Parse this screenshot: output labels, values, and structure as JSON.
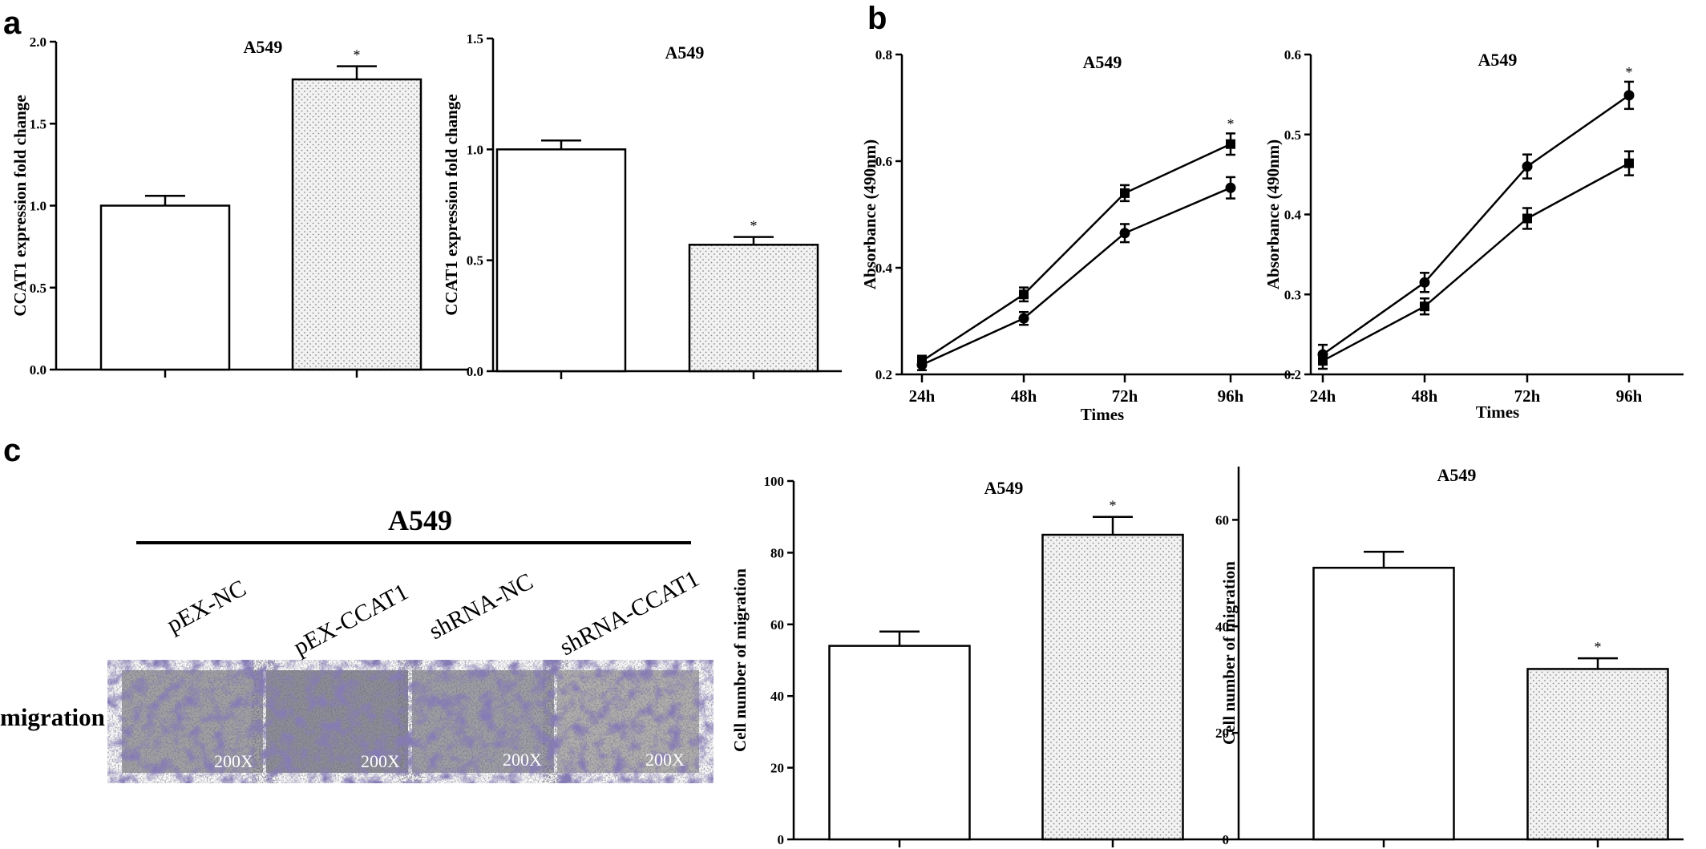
{
  "panels": {
    "a": "a",
    "b": "b",
    "c": "c"
  },
  "chart_data": [
    {
      "id": "a1",
      "type": "bar",
      "title": "A549",
      "ylabel": "CCAT1 expression fold change",
      "xlabel": "",
      "ylim": [
        0,
        2.0
      ],
      "yticks": [
        "0.0",
        "0.5",
        "1.0",
        "1.5",
        "2.0"
      ],
      "categories": [
        "",
        ""
      ],
      "values": [
        1.0,
        1.77
      ],
      "errors": [
        0.06,
        0.08
      ],
      "fills": [
        "white",
        "dotted"
      ],
      "annotations": [
        "",
        "*"
      ]
    },
    {
      "id": "a2",
      "type": "bar",
      "title": "A549",
      "ylabel": "CCAT1 expression fold change",
      "xlabel": "",
      "ylim": [
        0,
        1.5
      ],
      "yticks": [
        "0.0",
        "0.5",
        "1.0",
        "1.5"
      ],
      "categories": [
        "",
        ""
      ],
      "values": [
        1.0,
        0.57
      ],
      "errors": [
        0.04,
        0.035
      ],
      "fills": [
        "white",
        "dotted"
      ],
      "annotations": [
        "",
        "*"
      ]
    },
    {
      "id": "b1",
      "type": "line",
      "title": "A549",
      "ylabel": "Absorbance (490nm)",
      "xlabel": "Times",
      "ylim": [
        0.2,
        0.8
      ],
      "yticks": [
        "0.2",
        "0.4",
        "0.6",
        "0.8"
      ],
      "x": [
        "24h",
        "48h",
        "72h",
        "96h"
      ],
      "series": [
        {
          "marker": "square",
          "values": [
            0.225,
            0.35,
            0.54,
            0.632
          ],
          "errors": [
            0.01,
            0.013,
            0.015,
            0.02
          ]
        },
        {
          "marker": "circle",
          "values": [
            0.218,
            0.305,
            0.465,
            0.55
          ],
          "errors": [
            0.01,
            0.012,
            0.017,
            0.02
          ]
        }
      ],
      "annotations": [
        {
          "x": "96h",
          "text": "*"
        }
      ]
    },
    {
      "id": "b2",
      "type": "line",
      "title": "A549",
      "ylabel": "Absorbance (490nm)",
      "xlabel": "Times",
      "ylim": [
        0.2,
        0.6
      ],
      "yticks": [
        "0.2",
        "0.3",
        "0.4",
        "0.5",
        "0.6"
      ],
      "x": [
        "24h",
        "48h",
        "72h",
        "96h"
      ],
      "series": [
        {
          "marker": "circle",
          "values": [
            0.225,
            0.315,
            0.46,
            0.549
          ],
          "errors": [
            0.012,
            0.012,
            0.015,
            0.017
          ]
        },
        {
          "marker": "square",
          "values": [
            0.217,
            0.285,
            0.395,
            0.464
          ],
          "errors": [
            0.01,
            0.01,
            0.013,
            0.015
          ]
        }
      ],
      "annotations": [
        {
          "x": "96h",
          "text": "*"
        }
      ]
    },
    {
      "id": "c1",
      "type": "bar",
      "title": "A549",
      "ylabel": "Cell number of migration",
      "xlabel": "",
      "ylim": [
        0,
        100
      ],
      "yticks": [
        "0",
        "20",
        "40",
        "60",
        "80",
        "100"
      ],
      "categories": [
        "",
        ""
      ],
      "values": [
        54,
        85
      ],
      "errors": [
        4,
        5
      ],
      "fills": [
        "white",
        "dotted"
      ],
      "annotations": [
        "",
        "*"
      ]
    },
    {
      "id": "c2",
      "type": "bar",
      "title": "A549",
      "ylabel": "Cell number of migration",
      "xlabel": "",
      "ylim": [
        0,
        70
      ],
      "yticks": [
        "0",
        "20",
        "40",
        "60"
      ],
      "categories": [
        "",
        ""
      ],
      "values": [
        51,
        32
      ],
      "errors": [
        3,
        2
      ],
      "fills": [
        "white",
        "dotted"
      ],
      "annotations": [
        "",
        "*"
      ]
    }
  ],
  "migration": {
    "title": "A549",
    "row_label": "migration",
    "columns": [
      {
        "label": "pEX-NC",
        "magnification": "200X"
      },
      {
        "label": "pEX-CCAT1",
        "magnification": "200X"
      },
      {
        "label": "shRNA-NC",
        "magnification": "200X"
      },
      {
        "label": "shRNA-CCAT1",
        "magnification": "200X"
      }
    ]
  }
}
